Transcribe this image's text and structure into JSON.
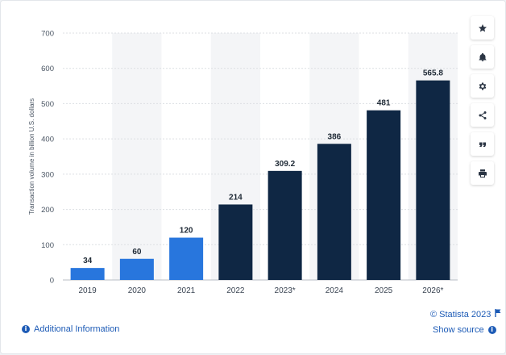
{
  "chart_data": {
    "type": "bar",
    "categories": [
      "2019",
      "2020",
      "2021",
      "2022",
      "2023*",
      "2024",
      "2025",
      "2026*"
    ],
    "values": [
      34,
      60,
      120,
      214,
      309.2,
      386,
      481,
      565.8
    ],
    "value_labels": [
      "34",
      "60",
      "120",
      "214",
      "309.2",
      "386",
      "481",
      "565.8"
    ],
    "title": "",
    "xlabel": "",
    "ylabel": "Transaction volume in billion U.S. dollars",
    "ylim": [
      0,
      700
    ],
    "yticks": [
      0,
      100,
      200,
      300,
      400,
      500,
      600,
      700
    ],
    "grid": true,
    "legend": "none",
    "colors": {
      "actual": "#2876dd",
      "forecast": "#0f2744",
      "band": "#f4f5f7",
      "grid": "#dcdfe3"
    },
    "bar_colors": [
      "actual",
      "actual",
      "actual",
      "forecast",
      "forecast",
      "forecast",
      "forecast",
      "forecast"
    ]
  },
  "toolbar": [
    {
      "name": "favorite-button",
      "icon": "star-icon"
    },
    {
      "name": "notification-button",
      "icon": "bell-icon"
    },
    {
      "name": "settings-button",
      "icon": "gear-icon"
    },
    {
      "name": "share-button",
      "icon": "share-icon"
    },
    {
      "name": "cite-button",
      "icon": "quote-icon"
    },
    {
      "name": "print-button",
      "icon": "print-icon"
    }
  ],
  "footer": {
    "copyright": "© Statista 2023",
    "additional_info": "Additional Information",
    "show_source": "Show source",
    "flag_icon": "flag-icon",
    "info_icon": "info-icon"
  }
}
